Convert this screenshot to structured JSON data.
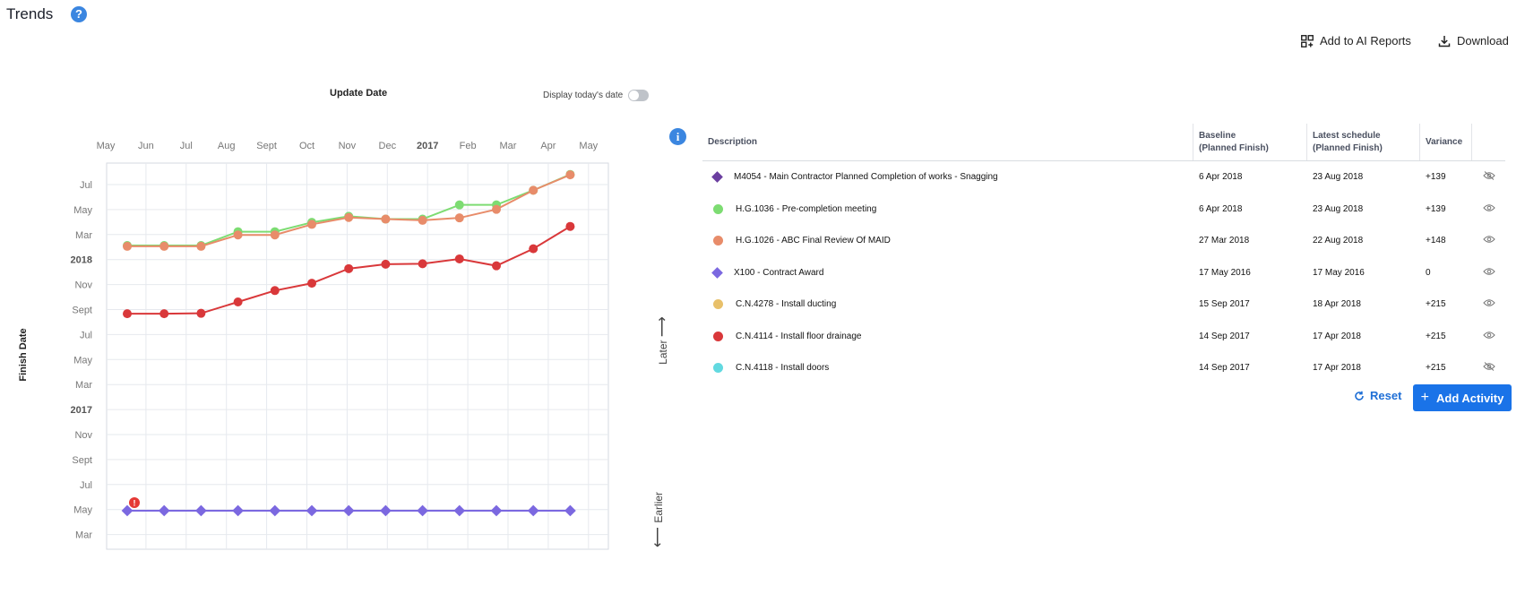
{
  "header": {
    "title": "Trends",
    "help_icon": "?"
  },
  "toolbar": {
    "add_ai_reports_label": "Add to AI Reports",
    "download_label": "Download"
  },
  "chart_controls": {
    "update_date_label": "Update Date",
    "display_today_label": "Display today's date",
    "display_today_on": false
  },
  "chart_data": {
    "type": "line",
    "x_ticks": [
      "May",
      "Jun",
      "Jul",
      "Aug",
      "Sept",
      "Oct",
      "Nov",
      "Dec",
      "2017",
      "Feb",
      "Mar",
      "Apr",
      "May"
    ],
    "y_ticks": [
      "Jul",
      "May",
      "Mar",
      "2018",
      "Nov",
      "Sept",
      "Jul",
      "May",
      "Mar",
      "2017",
      "Nov",
      "Sept",
      "Jul",
      "May",
      "Mar"
    ],
    "ylabel": "Finish Date",
    "y_annotation_later": "Later",
    "y_annotation_earlier": "Earlier",
    "update_dates": [
      "2016-05-16",
      "2016-06-28",
      "2016-07-28",
      "2016-08-28",
      "2016-09-27",
      "2016-10-27",
      "2016-11-25",
      "2016-12-24",
      "2017-01-22",
      "2017-02-20",
      "2017-03-20",
      "2017-04-19",
      "2017-05-19"
    ],
    "series": [
      {
        "name": "H.G.1036 - Pre-completion meeting",
        "color": "#7ddc72",
        "marker": "circle",
        "finish_dates": [
          "2018-03-01",
          "2018-03-01",
          "2018-03-01",
          "2018-04-04",
          "2018-04-04",
          "2018-04-27",
          "2018-05-12",
          "2018-05-05",
          "2018-05-05",
          "2018-06-09",
          "2018-06-09",
          "2018-07-15",
          "2018-08-23"
        ]
      },
      {
        "name": "H.G.1026 - ABC Final Review Of MAID",
        "color": "#e88c6a",
        "marker": "circle",
        "finish_dates": [
          "2018-02-27",
          "2018-02-27",
          "2018-02-27",
          "2018-03-27",
          "2018-03-27",
          "2018-04-22",
          "2018-05-09",
          "2018-05-05",
          "2018-05-02",
          "2018-05-08",
          "2018-05-29",
          "2018-07-15",
          "2018-08-22"
        ]
      },
      {
        "name": "C.N.4114 - Install floor drainage",
        "color": "#d9383a",
        "marker": "circle",
        "finish_dates": [
          "2017-09-14",
          "2017-09-14",
          "2017-09-15",
          "2017-10-13",
          "2017-11-10",
          "2017-11-28",
          "2018-01-03",
          "2018-01-14",
          "2018-01-15",
          "2018-01-27",
          "2018-01-10",
          "2018-02-21",
          "2018-04-17"
        ]
      },
      {
        "name": "X100 - Contract Award",
        "color": "#7b68e0",
        "marker": "diamond",
        "finish_dates": [
          "2016-05-17",
          "2016-05-17",
          "2016-05-17",
          "2016-05-17",
          "2016-05-17",
          "2016-05-17",
          "2016-05-17",
          "2016-05-17",
          "2016-05-17",
          "2016-05-17",
          "2016-05-17",
          "2016-05-17",
          "2016-05-17"
        ]
      }
    ],
    "warning_marker": "!",
    "grid": true
  },
  "table": {
    "columns": [
      "Description",
      "Baseline (Planned Finish)",
      "Latest schedule (Planned Finish)",
      "Variance",
      ""
    ],
    "column_lines": [
      [
        "Description"
      ],
      [
        "Baseline",
        "(Planned Finish)"
      ],
      [
        "Latest schedule",
        "(Planned Finish)"
      ],
      [
        "Variance"
      ]
    ],
    "rows": [
      {
        "marker": "diamond",
        "color": "#6b3fa0",
        "description": "M4054 - Main Contractor Planned Completion of works - Snagging",
        "baseline": "6 Apr 2018",
        "latest": "23 Aug 2018",
        "variance": "+139",
        "visibility_icon": "eye-off-icon"
      },
      {
        "marker": "circle",
        "color": "#7ddc72",
        "description": "H.G.1036 - Pre-completion meeting",
        "baseline": "6 Apr 2018",
        "latest": "23 Aug 2018",
        "variance": "+139",
        "visibility_icon": "eye-icon"
      },
      {
        "marker": "circle",
        "color": "#e88c6a",
        "description": "H.G.1026 - ABC Final Review Of MAID",
        "baseline": "27 Mar 2018",
        "latest": "22 Aug 2018",
        "variance": "+148",
        "visibility_icon": "eye-icon"
      },
      {
        "marker": "diamond",
        "color": "#7b68e0",
        "description": "X100 - Contract Award",
        "baseline": "17 May 2016",
        "latest": "17 May 2016",
        "variance": "0",
        "visibility_icon": "eye-icon"
      },
      {
        "marker": "circle",
        "color": "#e8c06a",
        "description": "C.N.4278 - Install ducting",
        "baseline": "15 Sep 2017",
        "latest": "18 Apr 2018",
        "variance": "+215",
        "visibility_icon": "eye-icon"
      },
      {
        "marker": "circle",
        "color": "#d9383a",
        "description": "C.N.4114 - Install floor drainage",
        "baseline": "14 Sep 2017",
        "latest": "17 Apr 2018",
        "variance": "+215",
        "visibility_icon": "eye-icon"
      },
      {
        "marker": "circle",
        "color": "#62d9e0",
        "description": "C.N.4118 - Install doors",
        "baseline": "14 Sep 2017",
        "latest": "17 Apr 2018",
        "variance": "+215",
        "visibility_icon": "eye-off-icon"
      }
    ]
  },
  "actions": {
    "reset_label": "Reset",
    "add_activity_label": "Add Activity"
  },
  "colors": {
    "accent": "#1a73e8",
    "info": "#3b86e0"
  }
}
